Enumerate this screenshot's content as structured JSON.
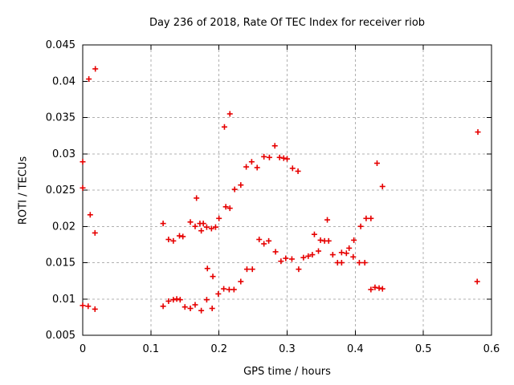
{
  "chart_data": {
    "type": "scatter",
    "title": "Day 236 of 2018, Rate Of TEC Index for receiver riob",
    "xlabel": "GPS time / hours",
    "ylabel": "ROTI / TECUs",
    "xlim": [
      0,
      0.6
    ],
    "ylim": [
      0.005,
      0.045
    ],
    "xticks": [
      0,
      0.1,
      0.2,
      0.3,
      0.4,
      0.5,
      0.6
    ],
    "xtick_labels": [
      "0",
      "0.1",
      "0.2",
      "0.3",
      "0.4",
      "0.5",
      "0.6"
    ],
    "yticks": [
      0.005,
      0.01,
      0.015,
      0.02,
      0.025,
      0.03,
      0.035,
      0.04,
      0.045
    ],
    "ytick_labels": [
      "0.005",
      "0.01",
      "0.015",
      "0.02",
      "0.025",
      "0.03",
      "0.035",
      "0.04",
      "0.045"
    ],
    "grid": true,
    "legend": "none",
    "marker": "plus",
    "marker_color": "#e60000",
    "grid_color": "#b0b0b0",
    "axis_color": "#000000",
    "points": [
      [
        0.0,
        0.0289
      ],
      [
        0.0,
        0.0253
      ],
      [
        0.0,
        0.0091
      ],
      [
        0.009,
        0.0403
      ],
      [
        0.0185,
        0.0417
      ],
      [
        0.011,
        0.0216
      ],
      [
        0.018,
        0.0191
      ],
      [
        0.008,
        0.009
      ],
      [
        0.018,
        0.0086
      ],
      [
        0.118,
        0.0204
      ],
      [
        0.126,
        0.0182
      ],
      [
        0.133,
        0.018
      ],
      [
        0.142,
        0.0187
      ],
      [
        0.147,
        0.0186
      ],
      [
        0.158,
        0.0206
      ],
      [
        0.165,
        0.02
      ],
      [
        0.167,
        0.0239
      ],
      [
        0.172,
        0.0204
      ],
      [
        0.177,
        0.0204
      ],
      [
        0.174,
        0.0194
      ],
      [
        0.182,
        0.0199
      ],
      [
        0.189,
        0.0197
      ],
      [
        0.195,
        0.0199
      ],
      [
        0.118,
        0.009
      ],
      [
        0.126,
        0.0097
      ],
      [
        0.133,
        0.0099
      ],
      [
        0.138,
        0.01
      ],
      [
        0.143,
        0.0099
      ],
      [
        0.15,
        0.0089
      ],
      [
        0.158,
        0.0087
      ],
      [
        0.165,
        0.0092
      ],
      [
        0.174,
        0.0084
      ],
      [
        0.182,
        0.0099
      ],
      [
        0.19,
        0.0087
      ],
      [
        0.183,
        0.0142
      ],
      [
        0.191,
        0.0131
      ],
      [
        0.2,
        0.0211
      ],
      [
        0.21,
        0.0227
      ],
      [
        0.216,
        0.0225
      ],
      [
        0.208,
        0.0337
      ],
      [
        0.216,
        0.0355
      ],
      [
        0.223,
        0.0251
      ],
      [
        0.232,
        0.0257
      ],
      [
        0.24,
        0.0282
      ],
      [
        0.248,
        0.0289
      ],
      [
        0.256,
        0.0281
      ],
      [
        0.266,
        0.0296
      ],
      [
        0.274,
        0.0295
      ],
      [
        0.282,
        0.0311
      ],
      [
        0.289,
        0.0295
      ],
      [
        0.295,
        0.0294
      ],
      [
        0.3,
        0.0293
      ],
      [
        0.308,
        0.028
      ],
      [
        0.316,
        0.0276
      ],
      [
        0.199,
        0.0107
      ],
      [
        0.207,
        0.0114
      ],
      [
        0.215,
        0.0113
      ],
      [
        0.222,
        0.0113
      ],
      [
        0.232,
        0.0124
      ],
      [
        0.241,
        0.0141
      ],
      [
        0.249,
        0.0141
      ],
      [
        0.259,
        0.0182
      ],
      [
        0.266,
        0.0176
      ],
      [
        0.273,
        0.018
      ],
      [
        0.283,
        0.0165
      ],
      [
        0.291,
        0.0152
      ],
      [
        0.298,
        0.0156
      ],
      [
        0.307,
        0.0155
      ],
      [
        0.317,
        0.0141
      ],
      [
        0.324,
        0.0157
      ],
      [
        0.331,
        0.0159
      ],
      [
        0.337,
        0.0161
      ],
      [
        0.346,
        0.0166
      ],
      [
        0.34,
        0.0189
      ],
      [
        0.349,
        0.0181
      ],
      [
        0.355,
        0.018
      ],
      [
        0.361,
        0.018
      ],
      [
        0.359,
        0.0209
      ],
      [
        0.367,
        0.0161
      ],
      [
        0.374,
        0.015
      ],
      [
        0.38,
        0.015
      ],
      [
        0.38,
        0.0164
      ],
      [
        0.387,
        0.0163
      ],
      [
        0.391,
        0.017
      ],
      [
        0.397,
        0.0158
      ],
      [
        0.398,
        0.0181
      ],
      [
        0.406,
        0.015
      ],
      [
        0.414,
        0.015
      ],
      [
        0.408,
        0.02
      ],
      [
        0.416,
        0.0211
      ],
      [
        0.423,
        0.0211
      ],
      [
        0.423,
        0.0113
      ],
      [
        0.429,
        0.0116
      ],
      [
        0.435,
        0.0115
      ],
      [
        0.44,
        0.0114
      ],
      [
        0.432,
        0.0287
      ],
      [
        0.44,
        0.0255
      ],
      [
        0.579,
        0.0124
      ],
      [
        0.58,
        0.033
      ]
    ]
  }
}
